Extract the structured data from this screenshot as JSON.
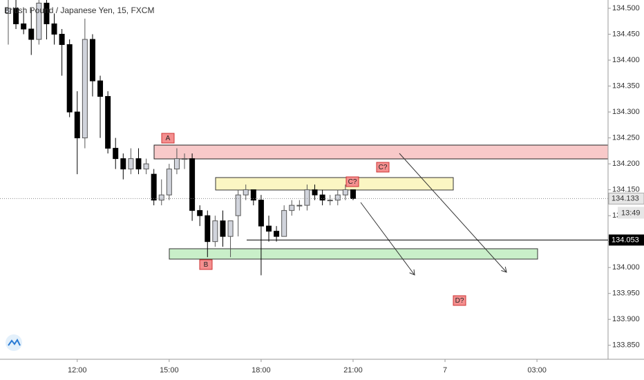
{
  "chart_data": {
    "type": "candlestick",
    "title": "British Pound / Japanese Yen, 15, FXCM",
    "x": [
      9.75,
      10,
      10.25,
      10.5,
      10.75,
      11,
      11.25,
      11.5,
      11.75,
      12,
      12.25,
      12.5,
      12.75,
      13,
      13.25,
      13.5,
      13.75,
      14,
      14.25,
      14.5,
      14.75,
      15,
      15.25,
      15.5,
      15.75,
      16,
      16.25,
      16.5,
      16.75,
      17,
      17.25,
      17.5,
      17.75,
      18,
      18.25,
      18.5,
      18.75,
      19,
      19.25,
      19.5,
      19.75,
      20,
      20.25,
      20.5,
      20.75,
      21
    ],
    "open": [
      134.49,
      134.5,
      134.47,
      134.46,
      134.44,
      134.51,
      134.47,
      134.45,
      134.43,
      134.3,
      134.25,
      134.44,
      134.36,
      134.33,
      134.23,
      134.21,
      134.19,
      134.21,
      134.19,
      134.18,
      134.13,
      134.14,
      134.19,
      134.21,
      134.21,
      134.11,
      134.1,
      134.05,
      134.09,
      134.06,
      134.1,
      134.14,
      134.15,
      134.13,
      134.08,
      134.07,
      134.06,
      134.11,
      134.12,
      134.12,
      134.15,
      134.14,
      134.13,
      134.13,
      134.14,
      134.15
    ],
    "high": [
      134.52,
      134.52,
      134.5,
      134.5,
      134.52,
      134.52,
      134.49,
      134.46,
      134.44,
      134.34,
      134.48,
      134.45,
      134.37,
      134.34,
      134.25,
      134.22,
      134.23,
      134.23,
      134.21,
      134.19,
      134.17,
      134.2,
      134.23,
      134.22,
      134.22,
      134.12,
      134.11,
      134.1,
      134.11,
      134.09,
      134.15,
      134.16,
      134.15,
      134.14,
      134.1,
      134.08,
      134.12,
      134.13,
      134.13,
      134.16,
      134.16,
      134.15,
      134.14,
      134.15,
      134.16,
      134.15
    ],
    "low": [
      134.43,
      134.46,
      134.45,
      134.41,
      134.43,
      134.44,
      134.43,
      134.37,
      134.29,
      134.18,
      134.23,
      134.33,
      134.25,
      134.22,
      134.19,
      134.17,
      134.18,
      134.18,
      134.18,
      134.12,
      134.12,
      134.13,
      134.18,
      134.19,
      134.09,
      134.08,
      134.02,
      134.04,
      134.04,
      134.02,
      134.06,
      134.13,
      134.12,
      133.985,
      134.05,
      134.05,
      134.06,
      134.1,
      134.11,
      134.11,
      134.13,
      134.12,
      134.12,
      134.12,
      134.13,
      134.13
    ],
    "close": [
      134.5,
      134.47,
      134.46,
      134.44,
      134.51,
      134.47,
      134.45,
      134.43,
      134.3,
      134.25,
      134.44,
      134.36,
      134.33,
      134.23,
      134.21,
      134.19,
      134.21,
      134.19,
      134.2,
      134.13,
      134.14,
      134.19,
      134.21,
      134.21,
      134.11,
      134.1,
      134.05,
      134.09,
      134.06,
      134.09,
      134.14,
      134.15,
      134.13,
      134.08,
      134.07,
      134.06,
      134.11,
      134.12,
      134.12,
      134.15,
      134.14,
      134.13,
      134.13,
      134.14,
      134.15,
      134.133
    ],
    "up_color": "#d1d4dc",
    "down_color": "#000000",
    "xlim": [
      9.48,
      29.32
    ],
    "xticks": [
      {
        "value": 12,
        "label": "12:00"
      },
      {
        "value": 15,
        "label": "15:00"
      },
      {
        "value": 18,
        "label": "18:00"
      },
      {
        "value": 21,
        "label": "21:00"
      },
      {
        "value": 24,
        "label": "7"
      },
      {
        "value": 27,
        "label": "03:00"
      }
    ],
    "ylim": [
      133.823,
      134.516
    ],
    "yticks": [
      {
        "value": 133.85,
        "label": "133.850"
      },
      {
        "value": 133.9,
        "label": "133.900"
      },
      {
        "value": 133.95,
        "label": "133.950"
      },
      {
        "value": 134.0,
        "label": "134.000"
      },
      {
        "value": 134.05,
        "label": "134.050"
      },
      {
        "value": 134.1,
        "label": "134.100"
      },
      {
        "value": 134.15,
        "label": "134.150"
      },
      {
        "value": 134.2,
        "label": "134.200"
      },
      {
        "value": 134.25,
        "label": "134.250"
      },
      {
        "value": 134.3,
        "label": "134.300"
      },
      {
        "value": 134.35,
        "label": "134.350"
      },
      {
        "value": 134.4,
        "label": "134.400"
      },
      {
        "value": 134.45,
        "label": "134.450"
      },
      {
        "value": 134.5,
        "label": "134.500"
      }
    ],
    "horizontal_line": 134.053,
    "last_price": 134.133,
    "countdown": "13:49",
    "annotations": [
      "A",
      "B",
      "C?",
      "C?",
      "D?"
    ]
  }
}
